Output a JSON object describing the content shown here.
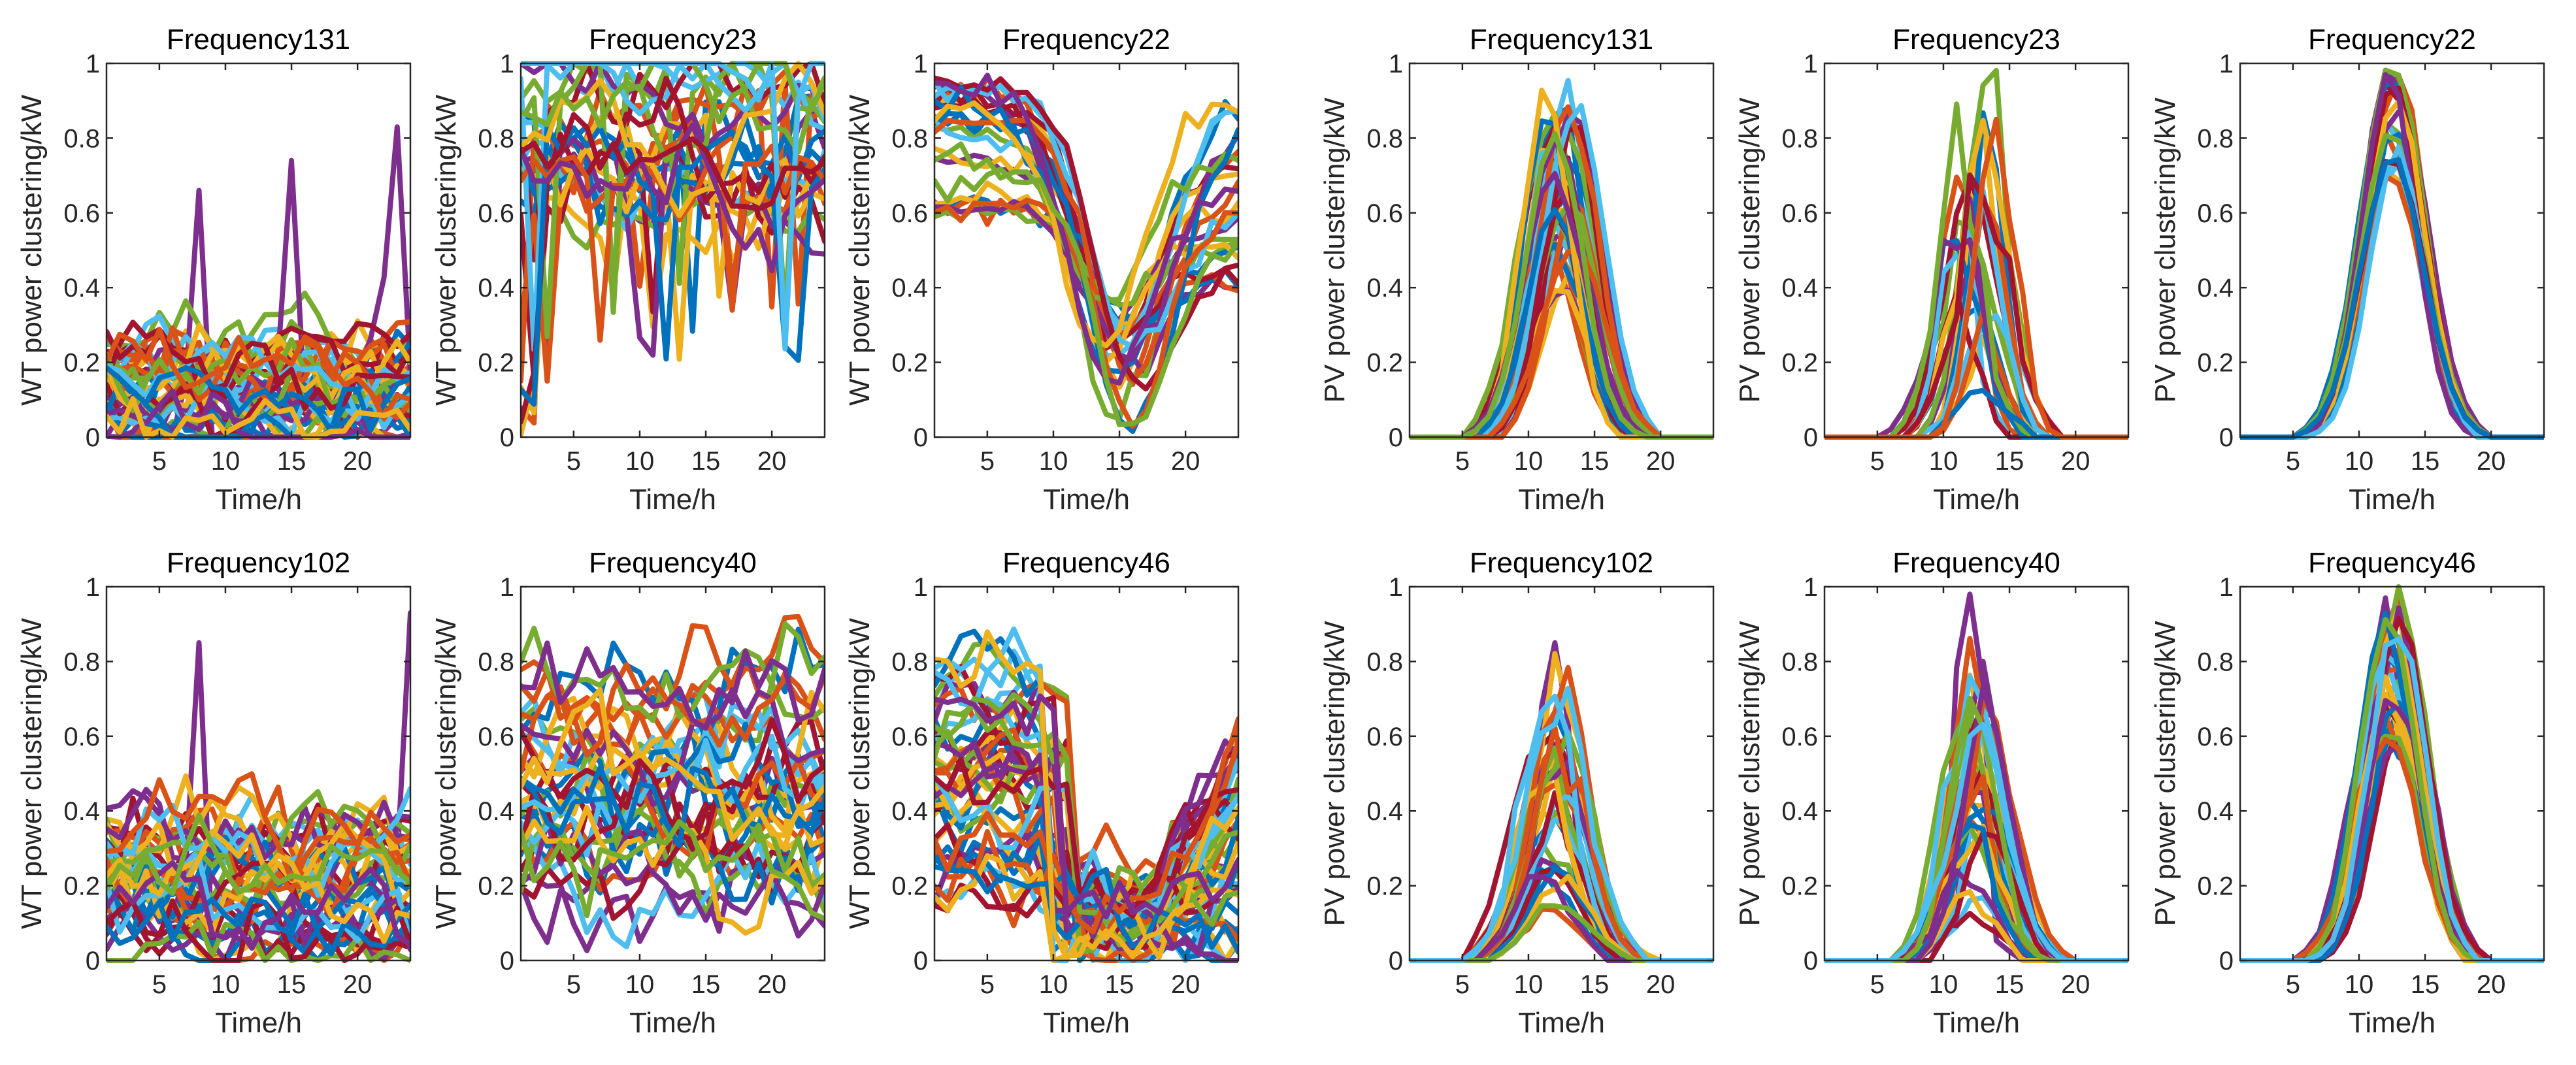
{
  "colors": [
    "#0072BD",
    "#D95319",
    "#EDB120",
    "#7E2F8E",
    "#77AC30",
    "#4DBEEE",
    "#A2142F"
  ],
  "chart_data": [
    {
      "type": "line",
      "title": "Frequency131",
      "xlabel": "Time/h",
      "ylabel": "WT power clustering/kW",
      "xlim": [
        1,
        24
      ],
      "ylim": [
        0,
        1
      ],
      "xticks": [
        5,
        10,
        15,
        20
      ],
      "yticks": [
        0,
        0.2,
        0.4,
        0.6,
        0.8,
        1
      ],
      "grid": false,
      "legend": "none",
      "pattern": "wt_low",
      "n_series": 45,
      "seed": 131,
      "highlights": [
        {
          "t": 8,
          "v": 0.66
        },
        {
          "t": 15,
          "v": 0.74
        },
        {
          "t": 23,
          "v": 0.83
        }
      ]
    },
    {
      "type": "line",
      "title": "Frequency23",
      "xlabel": "Time/h",
      "ylabel": "WT power clustering/kW",
      "xlim": [
        1,
        24
      ],
      "ylim": [
        0,
        1
      ],
      "xticks": [
        5,
        10,
        15,
        20
      ],
      "yticks": [
        0,
        0.2,
        0.4,
        0.6,
        0.8,
        1
      ],
      "grid": false,
      "legend": "none",
      "pattern": "wt_high",
      "n_series": 28,
      "seed": 23
    },
    {
      "type": "line",
      "title": "Frequency22",
      "xlabel": "Time/h",
      "ylabel": "WT power clustering/kW",
      "xlim": [
        1,
        24
      ],
      "ylim": [
        0,
        1
      ],
      "xticks": [
        5,
        10,
        15,
        20
      ],
      "yticks": [
        0,
        0.2,
        0.4,
        0.6,
        0.8,
        1
      ],
      "grid": false,
      "legend": "none",
      "pattern": "wt_dip",
      "n_series": 26,
      "seed": 22
    },
    {
      "type": "line",
      "title": "Frequency131",
      "xlabel": "Time/h",
      "ylabel": "PV power clustering/kW",
      "xlim": [
        1,
        24
      ],
      "ylim": [
        0,
        1
      ],
      "xticks": [
        5,
        10,
        15,
        20
      ],
      "yticks": [
        0,
        0.2,
        0.4,
        0.6,
        0.8,
        1
      ],
      "grid": false,
      "legend": "none",
      "pattern": "pv_var",
      "n_series": 40,
      "seed": 1131
    },
    {
      "type": "line",
      "title": "Frequency23",
      "xlabel": "Time/h",
      "ylabel": "PV power clustering/kW",
      "xlim": [
        1,
        24
      ],
      "ylim": [
        0,
        1
      ],
      "xticks": [
        5,
        10,
        15,
        20
      ],
      "yticks": [
        0,
        0.2,
        0.4,
        0.6,
        0.8,
        1
      ],
      "grid": false,
      "legend": "none",
      "pattern": "pv_spiky",
      "n_series": 23,
      "seed": 1023
    },
    {
      "type": "line",
      "title": "Frequency22",
      "xlabel": "Time/h",
      "ylabel": "PV power clustering/kW",
      "xlim": [
        1,
        24
      ],
      "ylim": [
        0,
        1
      ],
      "xticks": [
        5,
        10,
        15,
        20
      ],
      "yticks": [
        0,
        0.2,
        0.4,
        0.6,
        0.8,
        1
      ],
      "grid": false,
      "legend": "none",
      "pattern": "pv_clear",
      "n_series": 22,
      "seed": 1022
    },
    {
      "type": "line",
      "title": "Frequency102",
      "xlabel": "Time/h",
      "ylabel": "WT power clustering/kW",
      "xlim": [
        1,
        24
      ],
      "ylim": [
        0,
        1
      ],
      "xticks": [
        5,
        10,
        15,
        20
      ],
      "yticks": [
        0,
        0.2,
        0.4,
        0.6,
        0.8,
        1
      ],
      "grid": false,
      "legend": "none",
      "pattern": "wt_lowmid",
      "n_series": 40,
      "seed": 102,
      "highlights": [
        {
          "t": 8,
          "v": 0.85
        },
        {
          "t": 24,
          "v": 0.93
        }
      ]
    },
    {
      "type": "line",
      "title": "Frequency40",
      "xlabel": "Time/h",
      "ylabel": "WT power clustering/kW",
      "xlim": [
        1,
        24
      ],
      "ylim": [
        0,
        1
      ],
      "xticks": [
        5,
        10,
        15,
        20
      ],
      "yticks": [
        0,
        0.2,
        0.4,
        0.6,
        0.8,
        1
      ],
      "grid": false,
      "legend": "none",
      "pattern": "wt_mid",
      "n_series": 40,
      "seed": 40
    },
    {
      "type": "line",
      "title": "Frequency46",
      "xlabel": "Time/h",
      "ylabel": "WT power clustering/kW",
      "xlim": [
        1,
        24
      ],
      "ylim": [
        0,
        1
      ],
      "xticks": [
        5,
        10,
        15,
        20
      ],
      "yticks": [
        0,
        0.2,
        0.4,
        0.6,
        0.8,
        1
      ],
      "grid": false,
      "legend": "none",
      "pattern": "wt_decline",
      "n_series": 46,
      "seed": 46
    },
    {
      "type": "line",
      "title": "Frequency102",
      "xlabel": "Time/h",
      "ylabel": "PV power clustering/kW",
      "xlim": [
        1,
        24
      ],
      "ylim": [
        0,
        1
      ],
      "xticks": [
        5,
        10,
        15,
        20
      ],
      "yticks": [
        0,
        0.2,
        0.4,
        0.6,
        0.8,
        1
      ],
      "grid": false,
      "legend": "none",
      "pattern": "pv_low",
      "n_series": 34,
      "seed": 1102,
      "highlights": [
        {
          "t": 12,
          "v": 0.85
        }
      ]
    },
    {
      "type": "line",
      "title": "Frequency40",
      "xlabel": "Time/h",
      "ylabel": "PV power clustering/kW",
      "xlim": [
        1,
        24
      ],
      "ylim": [
        0,
        1
      ],
      "xticks": [
        5,
        10,
        15,
        20
      ],
      "yticks": [
        0,
        0.2,
        0.4,
        0.6,
        0.8,
        1
      ],
      "grid": false,
      "legend": "none",
      "pattern": "pv_var2",
      "n_series": 34,
      "seed": 1040,
      "highlights": [
        {
          "t": 12,
          "v": 0.98
        },
        {
          "t": 13,
          "v": 0.8
        }
      ]
    },
    {
      "type": "line",
      "title": "Frequency46",
      "xlabel": "Time/h",
      "ylabel": "PV power clustering/kW",
      "xlim": [
        1,
        24
      ],
      "ylim": [
        0,
        1
      ],
      "xticks": [
        5,
        10,
        15,
        20
      ],
      "yticks": [
        0,
        0.2,
        0.4,
        0.6,
        0.8,
        1
      ],
      "grid": false,
      "legend": "none",
      "pattern": "pv_clear2",
      "n_series": 34,
      "seed": 1046,
      "highlights": [
        {
          "t": 12,
          "v": 0.97
        }
      ]
    }
  ]
}
